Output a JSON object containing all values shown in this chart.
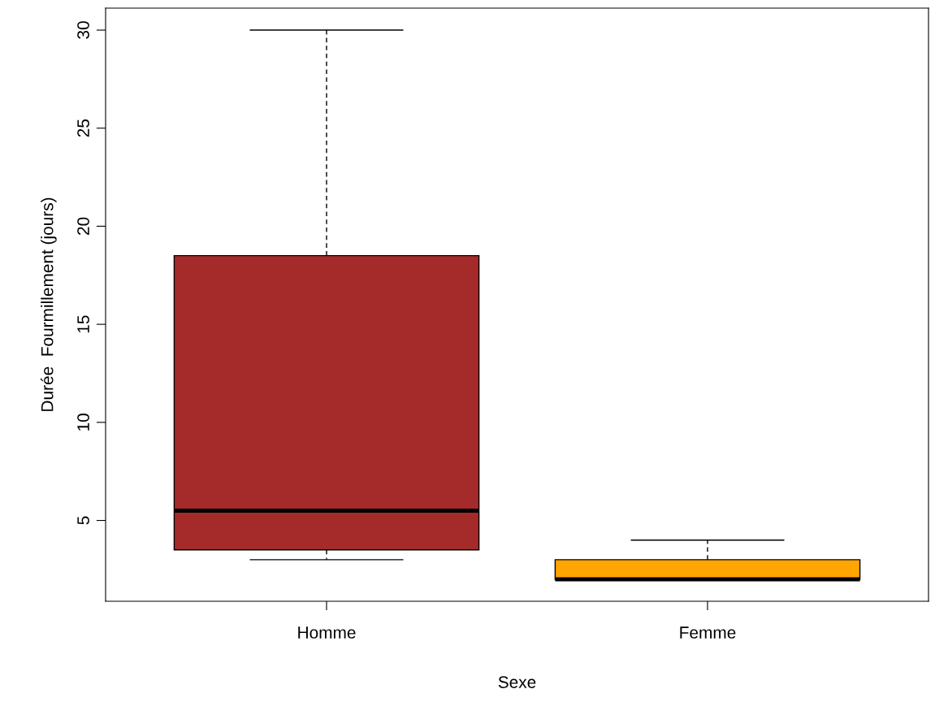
{
  "chart_data": {
    "type": "box",
    "xlabel": "Sexe",
    "ylabel": "Durée  Fourmillement (jours)",
    "categories": [
      "Homme",
      "Femme"
    ],
    "boxes": [
      {
        "low": 3,
        "q1": 3.5,
        "median": 5.5,
        "q3": 18.5,
        "high": 30
      },
      {
        "low": 2,
        "q1": 2,
        "median": 2,
        "q3": 3,
        "high": 4
      }
    ],
    "colors": [
      "#a52a2a",
      "#ffa500"
    ],
    "ylim": [
      0.88,
      31.12
    ],
    "yticks": [
      5,
      10,
      15,
      20,
      25,
      30
    ],
    "grid": false
  }
}
